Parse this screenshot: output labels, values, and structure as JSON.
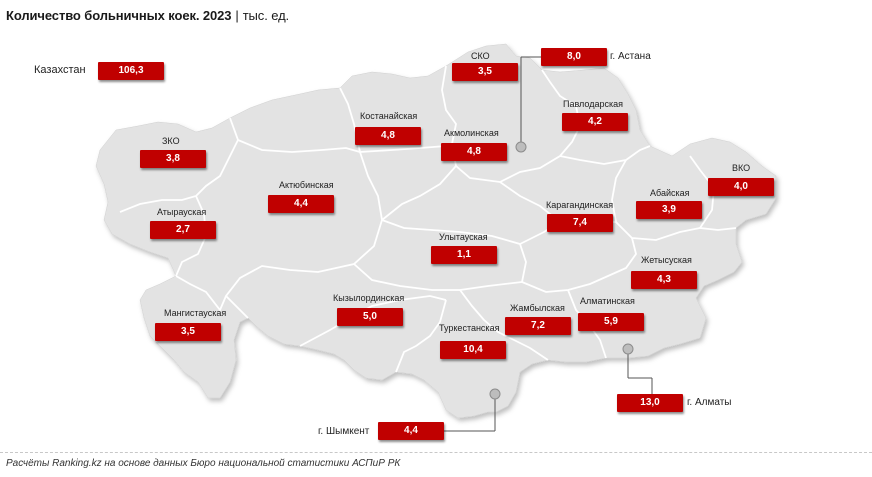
{
  "title": {
    "main": "Количество больничных коек. 2023",
    "separator": "|",
    "unit": "тыс. ед."
  },
  "country_total": {
    "label": "Казахстан",
    "value": "106,3"
  },
  "regions": [
    {
      "id": "sko",
      "name": "СКО",
      "value": "3,5"
    },
    {
      "id": "kostanay",
      "name": "Костанайская",
      "value": "4,8"
    },
    {
      "id": "akmola",
      "name": "Акмолинская",
      "value": "4,8"
    },
    {
      "id": "pavlodar",
      "name": "Павлодарская",
      "value": "4,2"
    },
    {
      "id": "zko",
      "name": "ЗКО",
      "value": "3,8"
    },
    {
      "id": "aktobe",
      "name": "Актюбинская",
      "value": "4,4"
    },
    {
      "id": "atyrau",
      "name": "Атырауская",
      "value": "2,7"
    },
    {
      "id": "karaganda",
      "name": "Карагандинская",
      "value": "7,4"
    },
    {
      "id": "abay",
      "name": "Абайская",
      "value": "3,9"
    },
    {
      "id": "vko",
      "name": "ВКО",
      "value": "4,0"
    },
    {
      "id": "ulytau",
      "name": "Улытауская",
      "value": "1,1"
    },
    {
      "id": "zhetysu",
      "name": "Жетысуская",
      "value": "4,3"
    },
    {
      "id": "mangystau",
      "name": "Мангистауская",
      "value": "3,5"
    },
    {
      "id": "kyzylorda",
      "name": "Кызылординская",
      "value": "5,0"
    },
    {
      "id": "zhambyl",
      "name": "Жамбылская",
      "value": "7,2"
    },
    {
      "id": "almaty_obl",
      "name": "Алматинская",
      "value": "5,9"
    },
    {
      "id": "turkestan",
      "name": "Туркестанская",
      "value": "10,4"
    }
  ],
  "cities": [
    {
      "id": "astana",
      "name": "г. Астана",
      "value": "8,0"
    },
    {
      "id": "almaty",
      "name": "г. Алматы",
      "value": "13,0"
    },
    {
      "id": "shymkent",
      "name": "г. Шымкент",
      "value": "4,4"
    }
  ],
  "colors": {
    "badge": "#c00000",
    "land": "#e3e3e3",
    "border": "#ffffff",
    "leader": "#555555"
  },
  "source": "Расчёты Ranking.kz на основе данных Бюро национальной статистики АСПиР РК"
}
